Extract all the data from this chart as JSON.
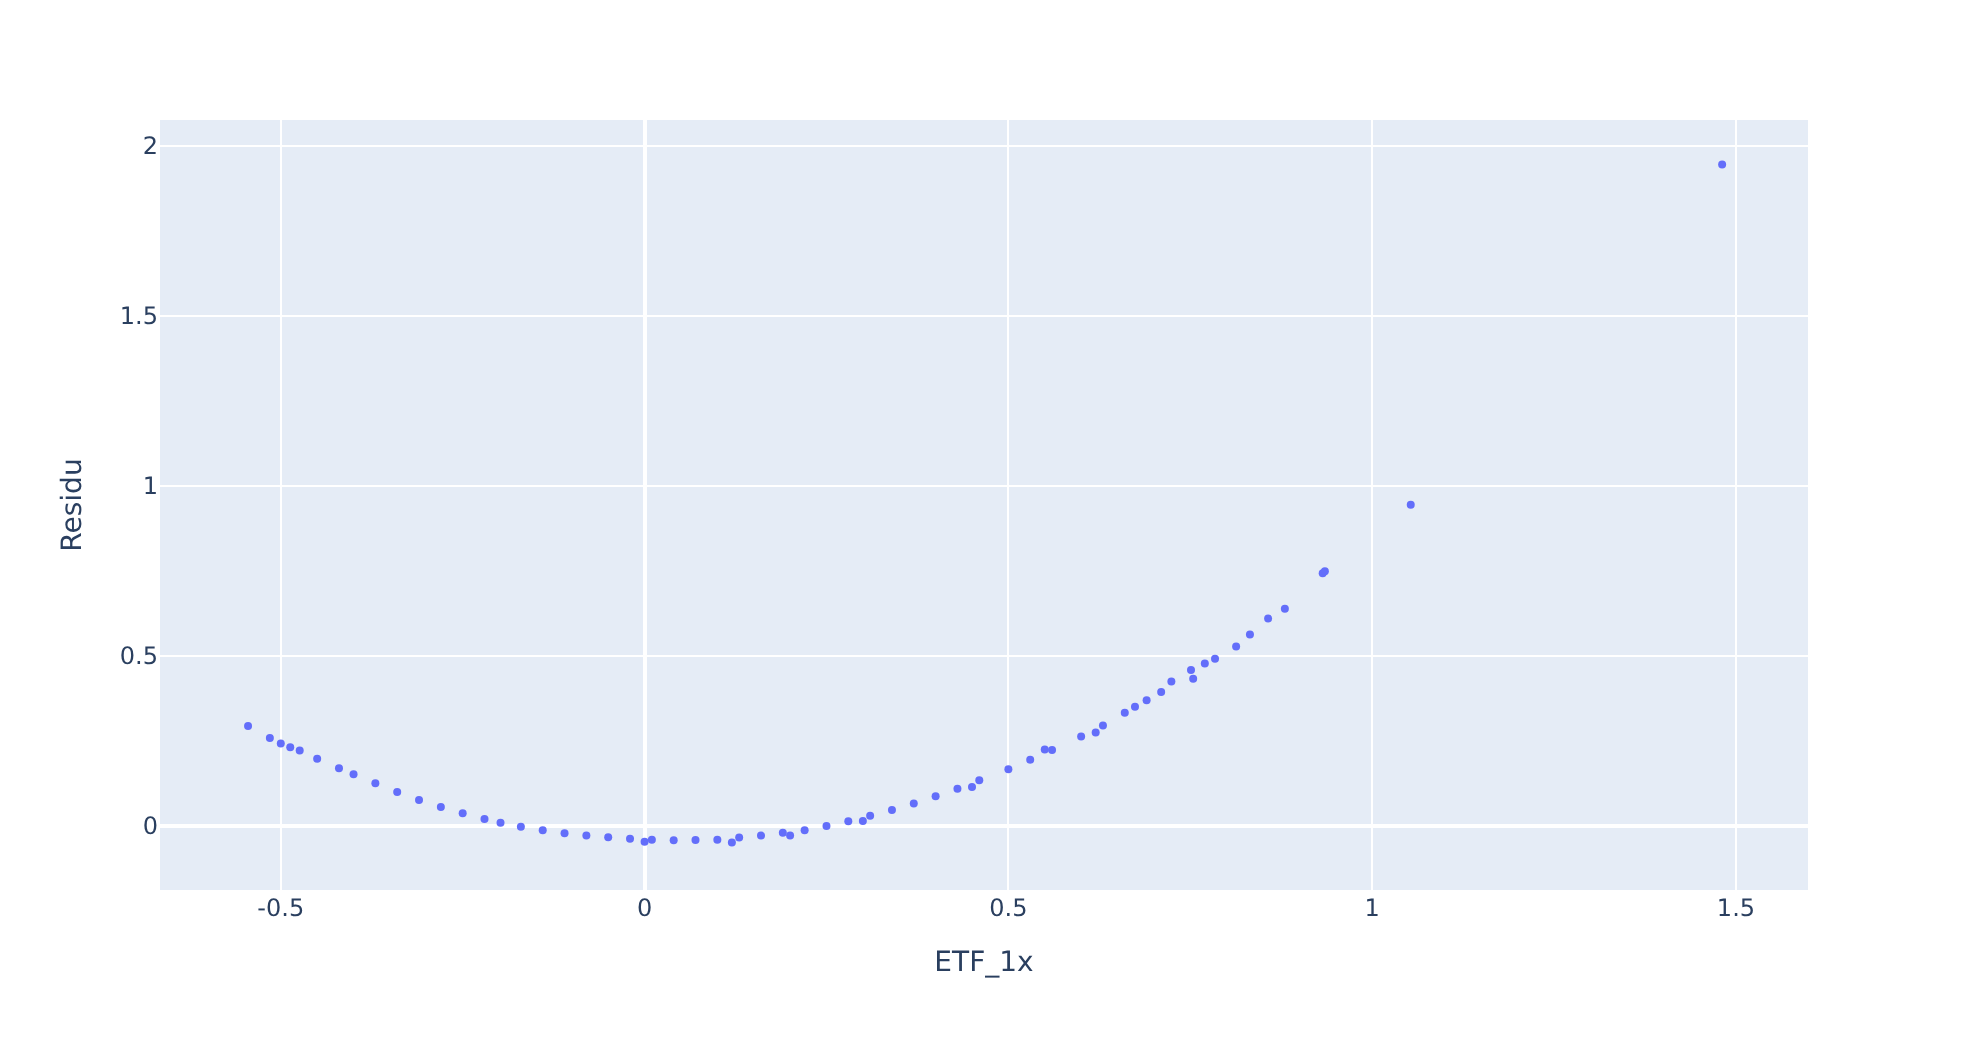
{
  "chart_data": {
    "type": "scatter",
    "xlabel": "ETF_1x",
    "ylabel": "Residu",
    "xlim": [
      -0.666,
      1.599
    ],
    "ylim": [
      -0.188,
      2.076
    ],
    "xticks": [
      -0.5,
      0,
      0.5,
      1,
      1.5
    ],
    "yticks": [
      0,
      0.5,
      1,
      1.5,
      2
    ],
    "grid": true,
    "marker": "circle",
    "legend": false,
    "series": [
      {
        "color": "#636efa",
        "x": [
          -0.545,
          -0.515,
          -0.5,
          -0.487,
          -0.474,
          -0.45,
          -0.42,
          -0.4,
          -0.37,
          -0.34,
          -0.31,
          -0.28,
          -0.25,
          -0.22,
          -0.198,
          -0.17,
          -0.14,
          -0.11,
          -0.08,
          -0.05,
          -0.02,
          0.0,
          0.01,
          0.04,
          0.07,
          0.1,
          0.12,
          0.13,
          0.16,
          0.19,
          0.2,
          0.22,
          0.25,
          0.28,
          0.3,
          0.31,
          0.34,
          0.37,
          0.4,
          0.43,
          0.45,
          0.46,
          0.5,
          0.53,
          0.55,
          0.56,
          0.6,
          0.62,
          0.63,
          0.66,
          0.674,
          0.69,
          0.71,
          0.724,
          0.751,
          0.754,
          0.77,
          0.784,
          0.813,
          0.832,
          0.857,
          0.88,
          0.932,
          0.935,
          1.053,
          1.481
        ],
        "values": [
          0.294,
          0.259,
          0.243,
          0.232,
          0.222,
          0.198,
          0.17,
          0.152,
          0.126,
          0.1,
          0.077,
          0.056,
          0.038,
          0.021,
          0.01,
          -0.002,
          -0.012,
          -0.021,
          -0.028,
          -0.033,
          -0.037,
          -0.046,
          -0.04,
          -0.042,
          -0.041,
          -0.04,
          -0.048,
          -0.034,
          -0.028,
          -0.02,
          -0.028,
          -0.012,
          0.0,
          0.014,
          0.015,
          0.03,
          0.047,
          0.066,
          0.088,
          0.11,
          0.115,
          0.135,
          0.167,
          0.195,
          0.225,
          0.224,
          0.263,
          0.275,
          0.296,
          0.333,
          0.351,
          0.37,
          0.394,
          0.425,
          0.459,
          0.433,
          0.478,
          0.492,
          0.528,
          0.563,
          0.61,
          0.639,
          0.743,
          0.749,
          0.945,
          1.945
        ]
      }
    ]
  }
}
